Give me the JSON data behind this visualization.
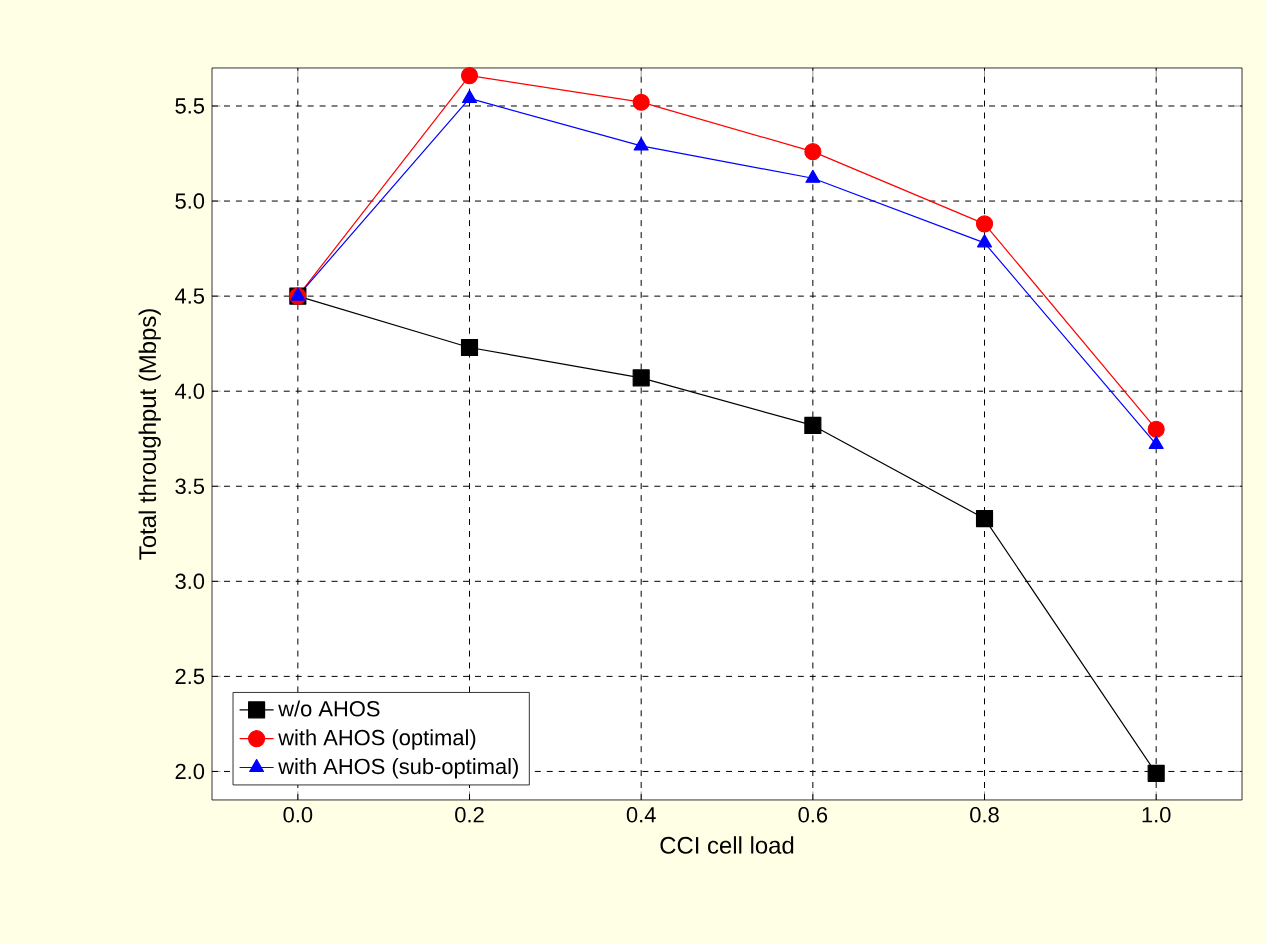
{
  "chart_data": {
    "type": "line",
    "xlabel": "CCI cell load",
    "ylabel": "Total throughput (Mbps)",
    "x": [
      0.0,
      0.2,
      0.4,
      0.6,
      0.8,
      1.0
    ],
    "series": [
      {
        "name": "w/o AHOS",
        "color": "#000000",
        "marker": "square",
        "values": [
          4.5,
          4.23,
          4.07,
          3.82,
          3.33,
          1.99
        ]
      },
      {
        "name": "with AHOS (optimal)",
        "color": "#ff0000",
        "marker": "circle",
        "values": [
          4.5,
          5.66,
          5.52,
          5.26,
          4.88,
          3.8
        ]
      },
      {
        "name": "with AHOS (sub-optimal)",
        "color": "#0000ff",
        "marker": "triangle",
        "values": [
          4.5,
          5.54,
          5.29,
          5.12,
          4.78,
          3.72
        ]
      }
    ],
    "xlim": [
      -0.1,
      1.1
    ],
    "ylim": [
      1.85,
      5.7
    ],
    "xticks": [
      {
        "value": 0,
        "label": "0.0"
      },
      {
        "value": 0.2,
        "label": "0.2"
      },
      {
        "value": 0.4,
        "label": "0.4"
      },
      {
        "value": 0.6,
        "label": "0.6"
      },
      {
        "value": 0.8,
        "label": "0.8"
      },
      {
        "value": 1.0,
        "label": "1.0"
      }
    ],
    "yticks": [
      {
        "value": 2,
        "label": "2.0"
      },
      {
        "value": 2.5,
        "label": "2.5"
      },
      {
        "value": 3,
        "label": "3.0"
      },
      {
        "value": 3.5,
        "label": "3.5"
      },
      {
        "value": 4,
        "label": "4.0"
      },
      {
        "value": 4.5,
        "label": "4.5"
      },
      {
        "value": 5,
        "label": "5.0"
      },
      {
        "value": 5.5,
        "label": "5.5"
      }
    ],
    "grid": true,
    "legend": "bottom left",
    "line_style": "solid"
  }
}
